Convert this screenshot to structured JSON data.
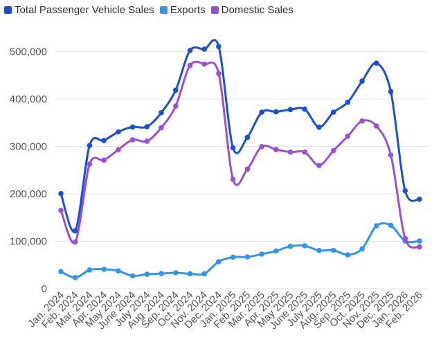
{
  "chart_data": {
    "type": "line",
    "title": "",
    "xlabel": "",
    "ylabel": "",
    "ylim": [
      0,
      540000
    ],
    "grid": "horizontal",
    "legend_position": "top-left",
    "y_ticks": [
      0,
      100000,
      200000,
      300000,
      400000,
      500000
    ],
    "y_tick_labels": [
      "0",
      "100,000",
      "200,000",
      "300,000",
      "400,000",
      "500,000"
    ],
    "categories": [
      "Jan. 2024",
      "Feb. 2024",
      "Mar. 2024",
      "Apr. 2024",
      "May 2024",
      "June 2024",
      "July 2024",
      "Aug. 2024",
      "Sep. 2024",
      "Oct. 2024",
      "Nov. 2024",
      "Dec. 2024",
      "Jan. 2025",
      "Feb. 2025",
      "Mar. 2025",
      "Apr. 2025",
      "May 2025",
      "June 2025",
      "July 2025",
      "Aug. 2025",
      "Sep. 2025",
      "Oct. 2025",
      "Nov. 2025",
      "Dec. 2025",
      "Jan. 2026",
      "Feb. 2026"
    ],
    "series": [
      {
        "name": "Total Passenger Vehicle Sales",
        "color": "#1a4fd6",
        "values": [
          200500,
          122000,
          302000,
          312500,
          330500,
          341000,
          341500,
          371000,
          418500,
          502000,
          505000,
          510500,
          297000,
          319000,
          372000,
          373000,
          377500,
          378500,
          340500,
          372000,
          393000,
          437500,
          475500,
          415500,
          206500,
          188500
        ]
      },
      {
        "name": "Exports",
        "color": "#2f95f0",
        "values": [
          36000,
          23500,
          39500,
          41000,
          37500,
          27000,
          30500,
          32000,
          33500,
          31500,
          31500,
          57000,
          66500,
          67000,
          73000,
          79500,
          89500,
          90500,
          80500,
          81000,
          71500,
          84000,
          132500,
          133500,
          100500,
          100500
        ]
      },
      {
        "name": "Domestic Sales",
        "color": "#9b4fd9",
        "values": [
          165000,
          98500,
          262500,
          271000,
          293000,
          314000,
          311000,
          339500,
          385000,
          470500,
          473500,
          453500,
          230500,
          252000,
          299500,
          293500,
          288000,
          288000,
          260000,
          291000,
          321500,
          353500,
          343000,
          282000,
          106000,
          88000
        ]
      }
    ]
  }
}
